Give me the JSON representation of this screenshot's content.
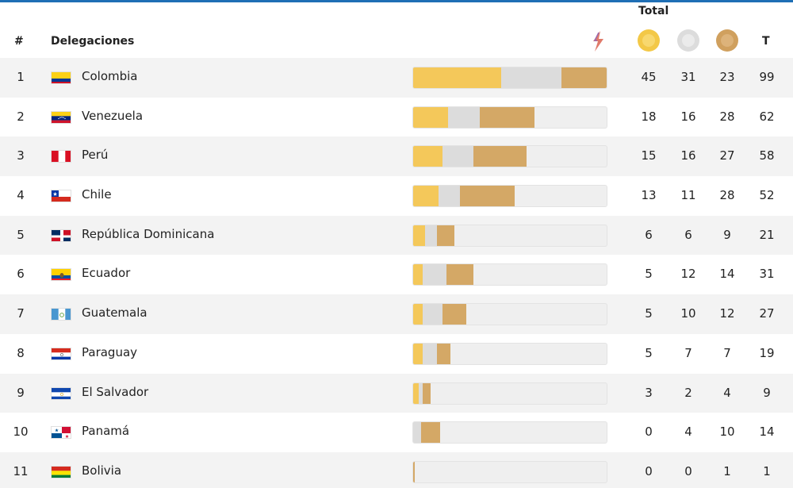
{
  "header": {
    "total_label": "Total",
    "rank_label": "#",
    "delegations_label": "Delegaciones",
    "total_col_label": "T"
  },
  "colors": {
    "gold": "#f4c85a",
    "silver": "#dcdcdc",
    "bronze": "#d4a866",
    "accent": "#1f6fb5"
  },
  "rows": [
    {
      "rank": "1",
      "country": "Colombia",
      "flag": "colombia-flag",
      "gold": "45",
      "silver": "31",
      "bronze": "23",
      "total": "99"
    },
    {
      "rank": "2",
      "country": "Venezuela",
      "flag": "venezuela-flag",
      "gold": "18",
      "silver": "16",
      "bronze": "28",
      "total": "62"
    },
    {
      "rank": "3",
      "country": "Perú",
      "flag": "peru-flag",
      "gold": "15",
      "silver": "16",
      "bronze": "27",
      "total": "58"
    },
    {
      "rank": "4",
      "country": "Chile",
      "flag": "chile-flag",
      "gold": "13",
      "silver": "11",
      "bronze": "28",
      "total": "52"
    },
    {
      "rank": "5",
      "country": "República Dominicana",
      "flag": "dominican-republic-flag",
      "gold": "6",
      "silver": "6",
      "bronze": "9",
      "total": "21"
    },
    {
      "rank": "6",
      "country": "Ecuador",
      "flag": "ecuador-flag",
      "gold": "5",
      "silver": "12",
      "bronze": "14",
      "total": "31"
    },
    {
      "rank": "7",
      "country": "Guatemala",
      "flag": "guatemala-flag",
      "gold": "5",
      "silver": "10",
      "bronze": "12",
      "total": "27"
    },
    {
      "rank": "8",
      "country": "Paraguay",
      "flag": "paraguay-flag",
      "gold": "5",
      "silver": "7",
      "bronze": "7",
      "total": "19"
    },
    {
      "rank": "9",
      "country": "El Salvador",
      "flag": "el-salvador-flag",
      "gold": "3",
      "silver": "2",
      "bronze": "4",
      "total": "9"
    },
    {
      "rank": "10",
      "country": "Panamá",
      "flag": "panama-flag",
      "gold": "0",
      "silver": "4",
      "bronze": "10",
      "total": "14"
    },
    {
      "rank": "11",
      "country": "Bolivia",
      "flag": "bolivia-flag",
      "gold": "0",
      "silver": "0",
      "bronze": "1",
      "total": "1"
    }
  ]
}
